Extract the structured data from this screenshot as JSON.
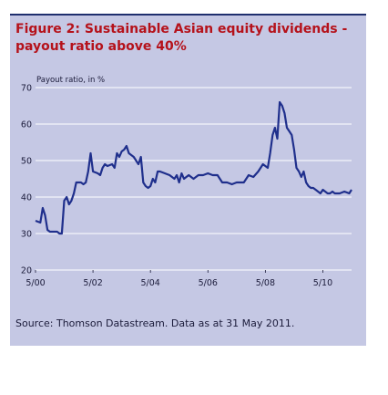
{
  "figure": {
    "title": "Figure 2: Sustainable Asian equity dividends - payout ratio above 40%",
    "source": "Source: Thomson Datastream. Data as at 31 May 2011."
  },
  "colors": {
    "panel": "#c5c8e4",
    "line": "#1f2f8c",
    "grid": "#ffffff",
    "title": "#b5121b"
  },
  "chart_data": {
    "type": "line",
    "title": "Figure 2: Sustainable Asian equity dividends - payout ratio above 40%",
    "ylabel": "Payout ratio, in %",
    "xlabel": "",
    "ylim": [
      20,
      70
    ],
    "xlim": [
      "2000-05",
      "2011-05"
    ],
    "y_ticks": [
      "70",
      "60",
      "50",
      "40",
      "30",
      "20"
    ],
    "x_ticks": [
      "5/00",
      "5/02",
      "5/04",
      "5/06",
      "5/08",
      "5/10"
    ],
    "grid": true,
    "series": [
      {
        "values_x": [
          "2000-05",
          "2000-07",
          "2000-08",
          "2000-09",
          "2000-10",
          "2000-11",
          "2000-12",
          "2001-01",
          "2001-02",
          "2001-03",
          "2001-04",
          "2001-05",
          "2001-06",
          "2001-07",
          "2001-08",
          "2001-09",
          "2001-10",
          "2001-12",
          "2002-01",
          "2002-02",
          "2002-03",
          "2002-04",
          "2002-05",
          "2002-07",
          "2002-08",
          "2002-09",
          "2002-10",
          "2002-11",
          "2003-01",
          "2003-02",
          "2003-03",
          "2003-04",
          "2003-05",
          "2003-06",
          "2003-07",
          "2003-08",
          "2003-10",
          "2003-12",
          "2004-01",
          "2004-02",
          "2004-03",
          "2004-04",
          "2004-05",
          "2004-06",
          "2004-07",
          "2004-08",
          "2004-09",
          "2004-11",
          "2005-01",
          "2005-03",
          "2005-04",
          "2005-05",
          "2005-06",
          "2005-07",
          "2005-09",
          "2005-11",
          "2006-01",
          "2006-03",
          "2006-05",
          "2006-07",
          "2006-09",
          "2006-11",
          "2007-01",
          "2007-03",
          "2007-05",
          "2007-06",
          "2007-08",
          "2007-10",
          "2007-12",
          "2008-02",
          "2008-04",
          "2008-06",
          "2008-07",
          "2008-08",
          "2008-09",
          "2008-10",
          "2008-11",
          "2008-12",
          "2009-01",
          "2009-02",
          "2009-03",
          "2009-04",
          "2009-05",
          "2009-06",
          "2009-07",
          "2009-08",
          "2009-09",
          "2009-10",
          "2009-11",
          "2009-12",
          "2010-01",
          "2010-02",
          "2010-03",
          "2010-04",
          "2010-05",
          "2010-06",
          "2010-07",
          "2010-08",
          "2010-09",
          "2010-10",
          "2010-12",
          "2011-02",
          "2011-04",
          "2011-05"
        ],
        "values": [
          33.5,
          33,
          37,
          35,
          31,
          30.5,
          30.5,
          30.5,
          30.5,
          30,
          30,
          39,
          40,
          38,
          39,
          41,
          44,
          44,
          43.5,
          44,
          47,
          52,
          47,
          46.5,
          46,
          48,
          49,
          48.5,
          49,
          48,
          52,
          51,
          52.5,
          53,
          54,
          52,
          51,
          49,
          51,
          44,
          43,
          42.5,
          43,
          45,
          44,
          47,
          47,
          46.5,
          46,
          45,
          46,
          44,
          46.5,
          45,
          46,
          45,
          46,
          46,
          46.5,
          46,
          46,
          44,
          44,
          43.5,
          44,
          44,
          44,
          46,
          45.5,
          47,
          49,
          48,
          52,
          57,
          59,
          56,
          66,
          65,
          63,
          59,
          58,
          57,
          53,
          48,
          47,
          45.5,
          47,
          44,
          43,
          42.5,
          42.5,
          42,
          41.5,
          41,
          42,
          41.5,
          41,
          41,
          41.5,
          41,
          41,
          41.5,
          41,
          42
        ]
      }
    ]
  }
}
